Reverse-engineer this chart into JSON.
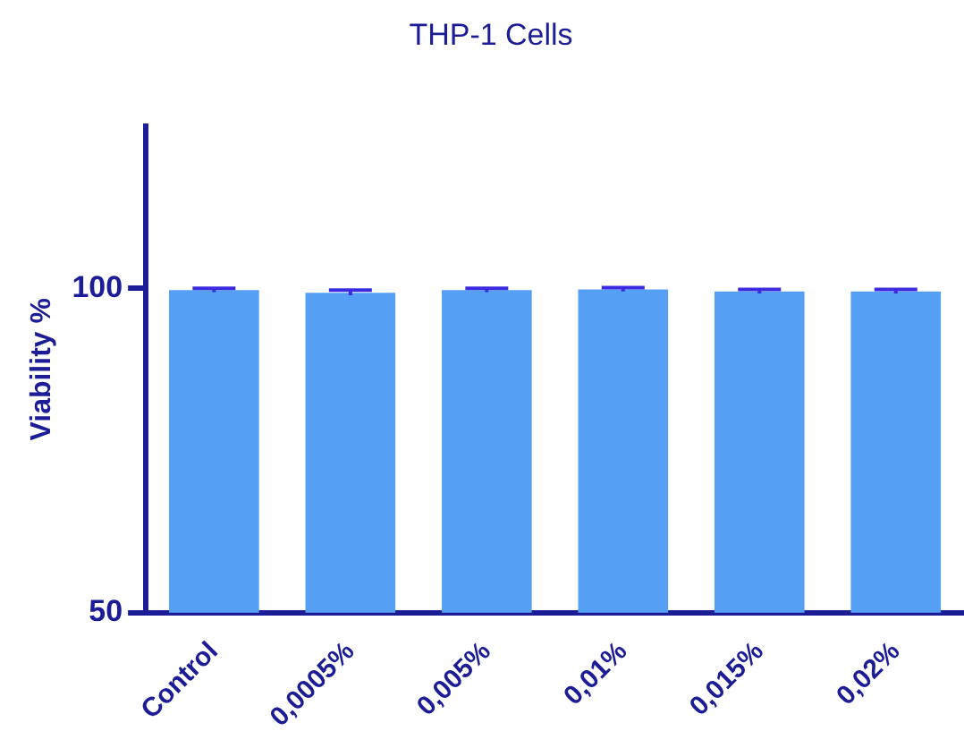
{
  "chart_data": {
    "type": "bar",
    "title": "THP-1 Cells",
    "ylabel": "Viability %",
    "categories": [
      "Control",
      "0,0005%",
      "0,005%",
      "0,01%",
      "0,015%",
      "0,02%"
    ],
    "values": [
      99.7,
      99.3,
      99.7,
      99.8,
      99.5,
      99.5
    ],
    "errors": [
      0.3,
      0.4,
      0.3,
      0.3,
      0.3,
      0.3
    ],
    "color": "#559ff5",
    "ylim": [
      50,
      125
    ],
    "yticks": [
      50,
      100
    ],
    "grid": false,
    "legend": false
  }
}
